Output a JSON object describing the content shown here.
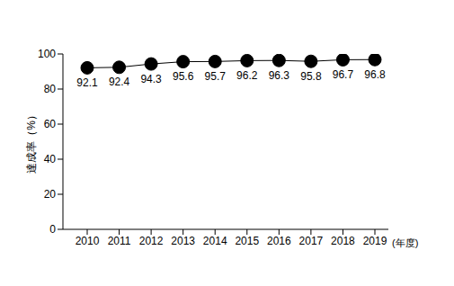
{
  "chart_data": {
    "type": "line",
    "x_label": "(年度)",
    "y_label": "達成率（%）",
    "categories": [
      "2010",
      "2011",
      "2012",
      "2013",
      "2014",
      "2015",
      "2016",
      "2017",
      "2018",
      "2019"
    ],
    "values": [
      92.1,
      92.4,
      94.3,
      95.6,
      95.7,
      96.2,
      96.3,
      95.8,
      96.7,
      96.8
    ],
    "color": "#000000",
    "marker": "circle",
    "ylim": [
      0,
      100
    ],
    "yticks": [
      0,
      20,
      40,
      60,
      80,
      100
    ],
    "grid": false,
    "data_labels": true
  }
}
